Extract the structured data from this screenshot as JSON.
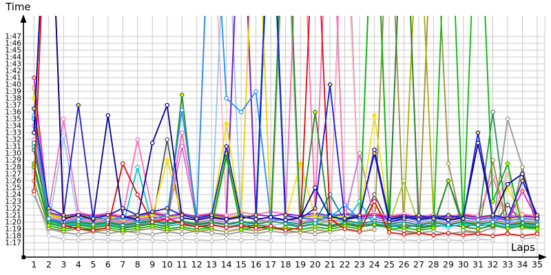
{
  "chart_data": {
    "type": "line",
    "title": "",
    "xlabel": "Laps",
    "ylabel": "Time",
    "grid": true,
    "legend": "none",
    "x_ticks": [
      1,
      2,
      3,
      4,
      5,
      6,
      7,
      8,
      9,
      10,
      11,
      12,
      13,
      14,
      15,
      16,
      17,
      18,
      19,
      20,
      21,
      22,
      23,
      24,
      25,
      26,
      27,
      28,
      29,
      30,
      31,
      32,
      33,
      34,
      35
    ],
    "y_tick_labels": [
      "1:17",
      "1:18",
      "1:19",
      "1:20",
      "1:21",
      "1:22",
      "1:23",
      "1:24",
      "1:25",
      "1:26",
      "1:27",
      "1:28",
      "1:29",
      "1:30",
      "1:31",
      "1:32",
      "1:33",
      "1:34",
      "1:35",
      "1:36",
      "1:37",
      "1:38",
      "1:39",
      "1:40",
      "1:41",
      "1:42",
      "1:43",
      "1:44",
      "1:45",
      "1:46",
      "1:47"
    ],
    "y_seconds_start": 77,
    "ylim_seconds": [
      76,
      110
    ],
    "offscale_spike_seconds": 128,
    "grid_color": "#c8c8c8",
    "axis_color": "#000000",
    "series": [
      {
        "name": "silver",
        "color": "#c4c4c4",
        "marker_fill": "#ffffff",
        "values": [
          84.5,
          78,
          77.5,
          77.4,
          77.5,
          77.4,
          77.3,
          77.5,
          77.4,
          77.3,
          77.5,
          77.4,
          77.3,
          77.5,
          77.4,
          77.5,
          77.3,
          128,
          77.5,
          77.4,
          77.3,
          77.5,
          77.4,
          77.3,
          77.5,
          77.4,
          77.3,
          77.5,
          77.4,
          77.3,
          77.5,
          77.4,
          87.5,
          77.5,
          77.8
        ]
      },
      {
        "name": "gray",
        "color": "#969696",
        "marker_fill": "#ffffff",
        "values": [
          84,
          79,
          78.5,
          78.2,
          78.6,
          78.3,
          78.7,
          78.4,
          78.2,
          78.6,
          78.3,
          78.7,
          78.4,
          78.2,
          78.6,
          78.3,
          78.7,
          78.4,
          78.6,
          78.3,
          78.7,
          135,
          80,
          133,
          79,
          78.6,
          78.4,
          78.7,
          78.3,
          78.6,
          78.4,
          79.2,
          95,
          88,
          79.5
        ]
      },
      {
        "name": "darkgray",
        "color": "#4e4e4e",
        "marker_fill": "#ffffff",
        "values": [
          90.5,
          80.5,
          79.5,
          79.8,
          79.4,
          79.7,
          79.3,
          79.6,
          79.9,
          92,
          79.6,
          79.3,
          79.6,
          79.3,
          79.7,
          79.4,
          131,
          79.6,
          79.3,
          79.7,
          79.4,
          79.8,
          79.4,
          84,
          79.5,
          79.2,
          79.6,
          79.3,
          79.6,
          79.3,
          79.7,
          79.4,
          82.5,
          80,
          79.6
        ]
      },
      {
        "name": "darkkhaki",
        "color": "#9c8b42",
        "marker_fill": "#ffffff",
        "values": [
          86,
          79.2,
          78.7,
          79,
          78.6,
          78.9,
          78.5,
          78.8,
          79.1,
          78.7,
          79,
          78.6,
          78.9,
          78.6,
          79,
          78.7,
          79.1,
          78.8,
          78.5,
          78.9,
          78.6,
          79,
          78.6,
          78.9,
          131,
          78.8,
          78.4,
          131,
          88.5,
          78.8,
          78.5,
          89,
          78.4,
          88,
          78.5
        ]
      },
      {
        "name": "pink",
        "color": "#ffb3c6",
        "marker_fill": "#ffffff",
        "values": [
          87,
          80.8,
          80.3,
          80.6,
          80.2,
          80.5,
          80.1,
          80.4,
          80.7,
          80.3,
          93,
          80.5,
          132,
          80.5,
          80.9,
          80.6,
          133,
          80.7,
          80.4,
          80.8,
          80.5,
          130,
          80.5,
          80.8,
          80.4,
          80.7,
          80.3,
          80.6,
          80.3,
          80.7,
          80.4,
          80.7,
          87.5,
          80.6,
          80.4
        ]
      },
      {
        "name": "skyblue",
        "color": "#8ec9ea",
        "marker_fill": "#ffffff",
        "values": [
          87.5,
          79.6,
          92.5,
          80,
          79.5,
          79.8,
          79.4,
          79.7,
          80,
          79.6,
          80,
          79.5,
          79.8,
          130,
          79.5,
          79.9,
          79.5,
          79.8,
          79.4,
          79.7,
          80,
          79.6,
          80,
          79.5,
          79.8,
          79.4,
          79.7,
          79.4,
          79.7,
          80,
          79.6,
          80,
          79.5,
          79.8,
          79.5
        ]
      },
      {
        "name": "yellowgreen",
        "color": "#9acd32",
        "marker_fill": "#ffffff",
        "values": [
          99.5,
          80.4,
          79.9,
          80.2,
          79.8,
          80.1,
          79.7,
          80,
          80.3,
          79.9,
          80.2,
          79.8,
          80.1,
          89.8,
          79.8,
          80.2,
          79.9,
          132,
          79.8,
          80.2,
          79.9,
          80.3,
          79.9,
          82.5,
          79.8,
          86,
          79.7,
          80,
          79.7,
          80.1,
          79.8,
          80.1,
          79.7,
          80,
          79.8
        ]
      },
      {
        "name": "olive",
        "color": "#abab00",
        "marker_fill": "#ffffff",
        "values": [
          99.5,
          81.2,
          80.7,
          81,
          80.6,
          80.9,
          80.5,
          80.8,
          81.1,
          80.7,
          81,
          80.6,
          80.9,
          80.6,
          81,
          80.7,
          132,
          80.9,
          80.6,
          81,
          80.7,
          81.1,
          80.7,
          81,
          80.6,
          80.9,
          128,
          80.8,
          80.5,
          80.9,
          80.6,
          80.9,
          80.5,
          80.8,
          80.6
        ]
      },
      {
        "name": "orchid",
        "color": "#d26fd2",
        "marker_fill": "#ffffff",
        "values": [
          94,
          80.6,
          80.1,
          80.4,
          80,
          80.3,
          79.9,
          80.2,
          80.5,
          80.1,
          91,
          80,
          80.3,
          80,
          133,
          80.4,
          80.1,
          80.4,
          80,
          80.4,
          80.1,
          80.5,
          90,
          80.4,
          80,
          80.3,
          79.9,
          80.2,
          79.9,
          80.3,
          80,
          80.3,
          79.9,
          80.2,
          80
        ]
      },
      {
        "name": "purple",
        "color": "#8215c4",
        "marker_fill": "#ffffff",
        "values": [
          95,
          81.4,
          80.9,
          81.2,
          80.8,
          81.1,
          80.7,
          81,
          81.3,
          80.9,
          81.2,
          80.8,
          81.1,
          80.8,
          134,
          81.1,
          80.8,
          81.2,
          80.9,
          81.3,
          80.9,
          81.2,
          80.8,
          81.1,
          80.7,
          81,
          80.6,
          80.9,
          80.6,
          81,
          80.7,
          81,
          80.6,
          80.9,
          80.7
        ]
      },
      {
        "name": "hotpink",
        "color": "#ff69b4",
        "marker_fill": "#ffffff",
        "values": [
          92,
          81.6,
          95,
          81.4,
          81,
          81.3,
          80.9,
          92,
          81.5,
          81.1,
          93,
          81,
          81.3,
          81,
          81.4,
          81.1,
          81.5,
          81.2,
          135,
          81.5,
          135,
          81.4,
          81,
          81.3,
          80.9,
          81.2,
          80.8,
          81.1,
          80.8,
          81.2,
          80.9,
          86.5,
          80.8,
          81.1,
          80.9
        ]
      },
      {
        "name": "magenta",
        "color": "#e316e3",
        "marker_fill": "#ffe400",
        "values": [
          101,
          81,
          80.4,
          80.7,
          80.3,
          80.6,
          80.2,
          80.5,
          80.8,
          80.4,
          80.7,
          80.3,
          80.6,
          80.3,
          80.7,
          134,
          80.6,
          80.3,
          80.6,
          80.4,
          80.8,
          80.4,
          80.7,
          81,
          80.4,
          134,
          80.2,
          80.6,
          80.3,
          80.7,
          80.4,
          80.7,
          80.3,
          84.5,
          80.4
        ]
      },
      {
        "name": "cyan",
        "color": "#00c8c8",
        "marker_fill": "#ffffff",
        "values": [
          95.5,
          80,
          79.5,
          79.8,
          79.4,
          79.7,
          79.3,
          88,
          79.7,
          79.4,
          79.7,
          79.3,
          79.6,
          79.3,
          79.7,
          79.4,
          132,
          79.6,
          79.3,
          79.7,
          81.5,
          79.8,
          83,
          79.5,
          79.2,
          79.6,
          79.3,
          79.6,
          79.3,
          79.7,
          79.4,
          79.7,
          79.3,
          79.6,
          79.4
        ]
      },
      {
        "name": "teal",
        "color": "#008b8b",
        "marker_fill": "#ffffff",
        "values": [
          91,
          80.3,
          79.8,
          80.1,
          79.7,
          80,
          79.6,
          79.9,
          80.2,
          79.8,
          80.1,
          79.7,
          80,
          79.7,
          80.1,
          79.8,
          132,
          80,
          79.7,
          80.1,
          84,
          80.2,
          79.8,
          80.1,
          79.7,
          80,
          79.6,
          79.9,
          79.6,
          80,
          79.7,
          80,
          79.6,
          79.9,
          79.7
        ]
      },
      {
        "name": "yellow",
        "color": "#f0e20a",
        "marker_fill": "#ffe400",
        "values": [
          98,
          81,
          80.5,
          80.8,
          80.4,
          80.7,
          80.3,
          80.6,
          80.9,
          89,
          80.7,
          80.3,
          80.6,
          94.3,
          80.5,
          133,
          80.6,
          80.3,
          88.5,
          80.7,
          80.4,
          80.8,
          80.4,
          95.5,
          80.3,
          80.7,
          80.3,
          80.6,
          80.2,
          80.6,
          80.3,
          80.6,
          85,
          80.5,
          80.3
        ]
      },
      {
        "name": "seagreen",
        "color": "#2e8b57",
        "marker_fill": "#ffffff",
        "values": [
          91.5,
          80.2,
          79.7,
          80,
          79.6,
          79.9,
          79.5,
          79.8,
          80.1,
          79.7,
          80,
          79.6,
          79.9,
          79.6,
          80,
          79.7,
          80.1,
          79.8,
          79.4,
          79.8,
          79.5,
          79.9,
          79.5,
          79.8,
          79.4,
          79.7,
          79.3,
          79.6,
          86,
          79.9,
          79.6,
          96,
          79.5,
          79.8,
          79.6
        ]
      },
      {
        "name": "forestgreen",
        "color": "#1e8b1e",
        "marker_fill": "#ffe400",
        "values": [
          88.5,
          79.8,
          79.3,
          79.6,
          79.2,
          79.5,
          79.1,
          79.4,
          79.7,
          79.3,
          98.5,
          79.4,
          79.2,
          89.5,
          79.2,
          79.6,
          79.3,
          135,
          79.2,
          96,
          79.3,
          79.7,
          79.3,
          79.6,
          79.2,
          135,
          79.1,
          79.4,
          86,
          79.3,
          79,
          79.5,
          79.1,
          79.4,
          79.2
        ]
      },
      {
        "name": "green",
        "color": "#00ba00",
        "marker_fill": "#ffe400",
        "values": [
          88,
          79.5,
          79,
          79.3,
          78.9,
          79.2,
          78.8,
          79.1,
          79.4,
          79,
          79.3,
          78.9,
          79.2,
          90,
          78.9,
          79.3,
          79,
          79.2,
          78.9,
          79.3,
          79,
          79.4,
          79,
          135,
          78.9,
          79.2,
          78.8,
          79.1,
          137,
          79.3,
          135,
          83,
          88.5,
          79.2,
          79
        ]
      },
      {
        "name": "dodgerblue",
        "color": "#1e90ff",
        "marker_fill": "#ffffff",
        "values": [
          95,
          80.5,
          80,
          80.4,
          80.8,
          80.3,
          80.6,
          80.2,
          80.5,
          80.9,
          96.3,
          80.5,
          135,
          98,
          96,
          99,
          80.5,
          80.2,
          80.6,
          80.3,
          80.6,
          82.5,
          80.4,
          80.7,
          80.3,
          80.6,
          80.2,
          80.5,
          80.2,
          80.6,
          80.3,
          80.6,
          80.2,
          80.5,
          80.3
        ]
      },
      {
        "name": "red",
        "color": "#e30505",
        "marker_fill": "#ffffff",
        "values": [
          84.5,
          138,
          79.5,
          79,
          78.8,
          79.2,
          88.5,
          84,
          80,
          80.5,
          79.8,
          79.3,
          79.6,
          79.2,
          79.5,
          79.1,
          79.4,
          78.8,
          79.2,
          130,
          80.5,
          79,
          78.6,
          83,
          78.5,
          78.2,
          78.4,
          78.1,
          78.4,
          78.1,
          78.3,
          78,
          78.3,
          78,
          78.3
        ]
      },
      {
        "name": "navy",
        "color": "#00008f",
        "marker_fill": "#ffffff",
        "values": [
          93,
          137,
          80.5,
          81,
          80.4,
          95.5,
          80.8,
          80.4,
          91.5,
          97,
          80.6,
          80.3,
          80.7,
          80.4,
          80.8,
          80.4,
          80.7,
          80.3,
          80.6,
          85,
          80.8,
          80.4,
          80.7,
          90.5,
          80.4,
          80.8,
          80.4,
          80.7,
          80.3,
          80.6,
          91.5,
          80.8,
          85.5,
          87,
          80.5
        ]
      },
      {
        "name": "blue",
        "color": "#1a1ad4",
        "marker_fill": "#ffe400",
        "values": [
          96.5,
          82,
          81,
          97,
          80.5,
          81,
          82,
          81,
          81.5,
          82,
          81,
          80.5,
          81,
          91,
          80.5,
          81,
          133,
          81,
          80.5,
          82,
          100,
          80.5,
          81,
          90,
          80,
          80.5,
          81,
          80.5,
          81,
          80.5,
          93,
          81,
          80.5,
          86,
          81
        ]
      }
    ]
  }
}
